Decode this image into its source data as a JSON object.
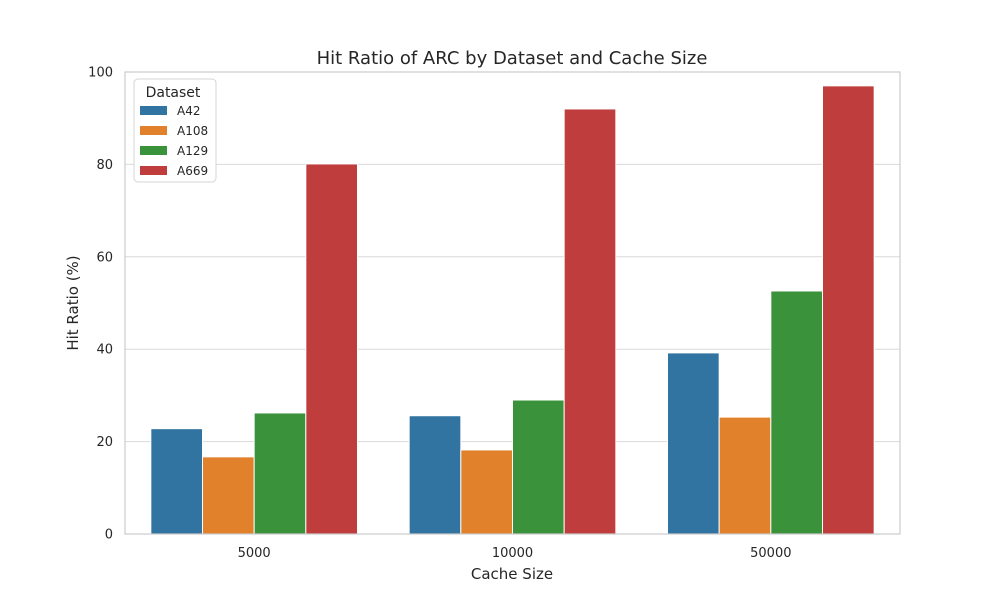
{
  "chart_data": {
    "type": "bar",
    "title": "Hit Ratio of ARC by Dataset and Cache Size",
    "xlabel": "Cache Size",
    "ylabel": "Hit Ratio (%)",
    "categories": [
      "5000",
      "10000",
      "50000"
    ],
    "ylim": [
      0,
      100
    ],
    "yticks": [
      0,
      20,
      40,
      60,
      80,
      100
    ],
    "grid": "horizontal",
    "legend": {
      "title": "Dataset",
      "placement": "top-left"
    },
    "series": [
      {
        "name": "A42",
        "color": "#3274a1",
        "values": [
          22.8,
          25.6,
          39.2
        ]
      },
      {
        "name": "A108",
        "color": "#e1812c",
        "values": [
          16.7,
          18.2,
          25.3
        ]
      },
      {
        "name": "A129",
        "color": "#3a923a",
        "values": [
          26.2,
          29.0,
          52.6
        ]
      },
      {
        "name": "A669",
        "color": "#c03d3e",
        "values": [
          80.1,
          92.0,
          97.0
        ]
      }
    ]
  }
}
